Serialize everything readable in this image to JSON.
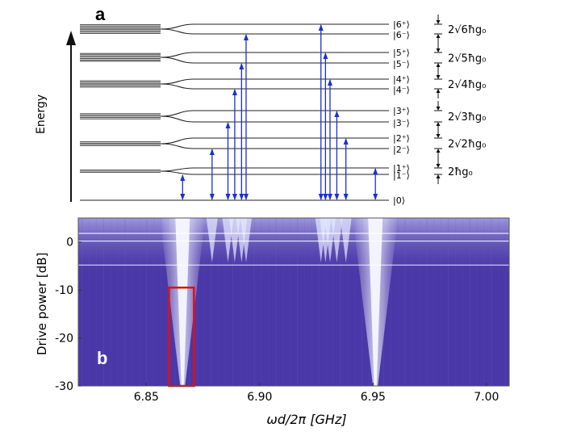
{
  "panel_labels": {
    "a": "a",
    "b": "b"
  },
  "energy_diagram": {
    "axis_label": "Energy",
    "states": [
      {
        "label": "|6⁺⟩"
      },
      {
        "label": "|6⁻⟩"
      },
      {
        "label": "|5⁺⟩"
      },
      {
        "label": "|5⁻⟩"
      },
      {
        "label": "|4⁺⟩"
      },
      {
        "label": "|4⁻⟩"
      },
      {
        "label": "|3⁺⟩"
      },
      {
        "label": "|3⁻⟩"
      },
      {
        "label": "|2⁺⟩"
      },
      {
        "label": "|2⁻⟩"
      },
      {
        "label": "|1⁺⟩"
      },
      {
        "label": "|1⁻⟩"
      },
      {
        "label": "|0⟩"
      }
    ],
    "splittings": [
      {
        "n": 6,
        "text": "2√6ħg₀"
      },
      {
        "n": 5,
        "text": "2√5ħg₀"
      },
      {
        "n": 4,
        "text": "2√4ħg₀"
      },
      {
        "n": 3,
        "text": "2√3ħg₀"
      },
      {
        "n": 2,
        "text": "2√2ħg₀"
      },
      {
        "n": 1,
        "text": "2ħg₀"
      }
    ],
    "transition_frequencies_ghz": {
      "lower_branch": [
        6.866,
        6.879,
        6.886,
        6.889,
        6.892,
        6.894
      ],
      "upper_branch": [
        6.951,
        6.938,
        6.934,
        6.931,
        6.929,
        6.927
      ]
    }
  },
  "chart_data": {
    "type": "heatmap",
    "title": "",
    "xlabel": "ωd/2π [GHz]",
    "ylabel": "Drive power [dB]",
    "xlim": [
      6.82,
      7.01
    ],
    "ylim": [
      -30,
      5
    ],
    "x_ticks": [
      "6.85",
      "6.90",
      "6.95",
      "7.00"
    ],
    "x_tick_values": [
      6.85,
      6.9,
      6.95,
      7.0
    ],
    "y_ticks": [
      "0",
      "-10",
      "-20",
      "-30"
    ],
    "y_tick_values": [
      0,
      -10,
      -20,
      -30
    ],
    "horizontal_lines_db": [
      1.8,
      0.2,
      -4.8
    ],
    "dominant_peaks_ghz": [
      6.866,
      6.951
    ],
    "highlight_box": {
      "x_range": [
        6.86,
        6.871
      ],
      "y_range": [
        -30,
        -9.5
      ],
      "color": "#dd1111"
    }
  },
  "colors": {
    "arrow": "#1a2fd6",
    "heatmap_background": "#4a37a8",
    "peak_color": "#e8ecff"
  }
}
